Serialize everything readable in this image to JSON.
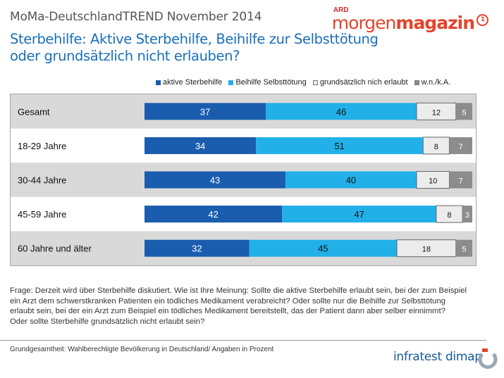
{
  "header": {
    "series_title": "MoMa-DeutschlandTREND November 2014",
    "logo_ard": "ARD",
    "logo_morgen": "morgen",
    "logo_magazin": "magazin",
    "logo_one": "1",
    "question_title": "Sterbehilfe: Aktive Sterbehilfe, Beihilfe zur Selbsttötung oder grundsätzlich nicht erlauben?"
  },
  "colors": {
    "aktive": "#1a5dae",
    "beihilfe": "#22b0e8",
    "nicht": "#ececec",
    "wnka": "#8c8c8c",
    "row_band": "#d9d9d9"
  },
  "chart_data": {
    "type": "bar",
    "orientation": "horizontal",
    "stacked": true,
    "categories": [
      "Gesamt",
      "18-29 Jahre",
      "30-44 Jahre",
      "45-59 Jahre",
      "60 Jahre und älter"
    ],
    "series": [
      {
        "name": "aktive Sterbehilfe",
        "values": [
          37,
          34,
          43,
          42,
          32
        ]
      },
      {
        "name": "Beihilfe Selbsttötung",
        "values": [
          46,
          51,
          40,
          47,
          45
        ]
      },
      {
        "name": "grundsätzlich nich erlaubt",
        "values": [
          12,
          8,
          10,
          8,
          18
        ]
      },
      {
        "name": "w.n./k.A.",
        "values": [
          5,
          7,
          7,
          3,
          5
        ]
      }
    ],
    "xlim": [
      0,
      100
    ],
    "legend_position": "top",
    "grid": false
  },
  "footnote": {
    "lines": [
      "Frage: Derzeit wird über Sterbehilfe diskutiert. Wie ist Ihre Meinung: Sollte die aktive Sterbehilfe erlaubt sein, bei der zum Beispiel",
      "ein Arzt dem schwerstkranken Patienten ein tödliches Medikament verabreicht? Oder sollte nur die Beihilfe zur Selbsttötung",
      "erlaubt sein, bei der ein Arzt zum Beispiel ein tödliches Medikament bereitstellt, das der Patient dann aber selber einnimmt?",
      "Oder sollte Sterbehilfe grundsätzlich nicht erlaubt sein?"
    ]
  },
  "footer": {
    "base": "Grundgesamtheit: Wahlberechtigte Bevölkerung in Deutschland/ Angaben in Prozent",
    "brand": "infratest dimap"
  }
}
